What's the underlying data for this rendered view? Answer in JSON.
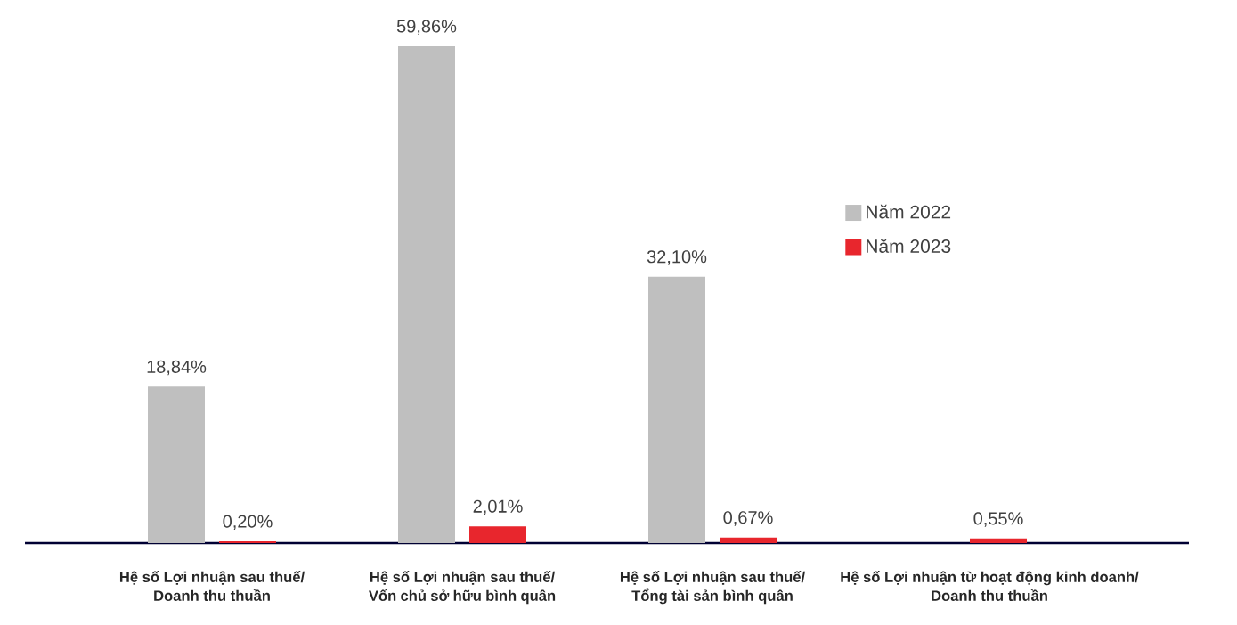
{
  "chart_data": {
    "type": "bar",
    "categories": [
      "Hệ số Lợi nhuận sau thuế/ Doanh thu thuần",
      "Hệ số Lợi nhuận sau thuế/ Vốn chủ sở hữu bình quân",
      "Hệ số Lợi nhuận sau thuế/ Tổng tài sản bình quân",
      "Hệ số Lợi nhuận từ hoạt động kinh doanh/ Doanh thu thuần"
    ],
    "series": [
      {
        "name": "Năm 2022",
        "color": "#bfbfbf",
        "values": [
          18.84,
          59.86,
          32.1,
          null
        ],
        "value_labels": [
          "18,84%",
          "59,86%",
          "32,10%",
          null
        ]
      },
      {
        "name": "Năm 2023",
        "color": "#e8262d",
        "values": [
          0.2,
          2.01,
          0.67,
          0.55
        ],
        "value_labels": [
          "0,20%",
          "2,01%",
          "0,67%",
          "0,55%"
        ]
      }
    ],
    "legend": "top right"
  }
}
